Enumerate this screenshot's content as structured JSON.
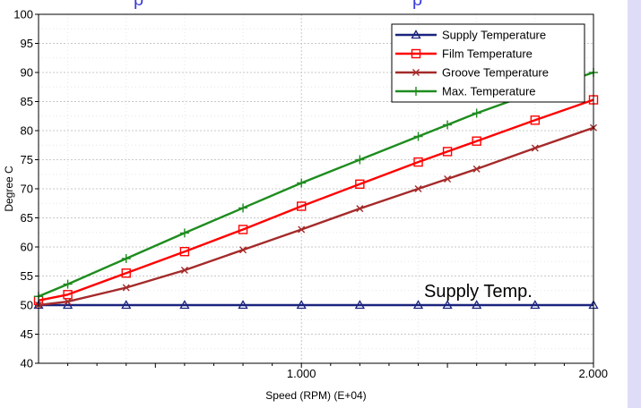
{
  "header": {
    "fragments": [
      "p",
      "p"
    ]
  },
  "chart_data": {
    "type": "line",
    "xlabel": "Speed (RPM) (E+04)",
    "ylabel": "Degree C",
    "xlim": [
      0.1,
      2.0
    ],
    "ylim": [
      40,
      100
    ],
    "x_ticks": [
      {
        "value": 1.0,
        "label": "1.000"
      },
      {
        "value": 2.0,
        "label": "2.000"
      }
    ],
    "y_ticks": [
      40,
      45,
      50,
      55,
      60,
      65,
      70,
      75,
      80,
      85,
      90,
      95,
      100
    ],
    "grid": true,
    "legend_position": "top-right",
    "annotations": [
      {
        "text": "Supply Temp.",
        "x": 1.42,
        "y": 52.5
      }
    ],
    "series": [
      {
        "name": "Supply Temperature",
        "color": "#1a237e",
        "marker": "triangle",
        "x": [
          0.1,
          0.2,
          0.4,
          0.6,
          0.8,
          1.0,
          1.2,
          1.4,
          1.5,
          1.6,
          1.8,
          2.0
        ],
        "y": [
          50,
          50,
          50,
          50,
          50,
          50,
          50,
          50,
          50,
          50,
          50,
          50
        ]
      },
      {
        "name": "Film Temperature",
        "color": "#ff0000",
        "marker": "square",
        "x": [
          0.1,
          0.2,
          0.4,
          0.6,
          0.8,
          1.0,
          1.2,
          1.4,
          1.5,
          1.6,
          1.8,
          2.0
        ],
        "y": [
          50.8,
          51.8,
          55.5,
          59.2,
          63.0,
          67.0,
          70.8,
          74.6,
          76.4,
          78.2,
          81.8,
          85.3
        ]
      },
      {
        "name": "Groove Temperature",
        "color": "#a52a2a",
        "marker": "x",
        "x": [
          0.1,
          0.2,
          0.4,
          0.6,
          0.8,
          1.0,
          1.2,
          1.4,
          1.5,
          1.6,
          1.8,
          2.0
        ],
        "y": [
          50.0,
          50.6,
          53.0,
          56.0,
          59.5,
          63.0,
          66.6,
          70.0,
          71.7,
          73.4,
          77.0,
          80.5
        ]
      },
      {
        "name": "Max. Temperature",
        "color": "#1e8c1e",
        "marker": "plus",
        "x": [
          0.1,
          0.2,
          0.4,
          0.6,
          0.8,
          1.0,
          1.2,
          1.4,
          1.5,
          1.6,
          1.8,
          2.0
        ],
        "y": [
          51.5,
          53.6,
          58.0,
          62.4,
          66.7,
          71.0,
          75.0,
          79.0,
          81.0,
          83.0,
          86.6,
          90.0
        ]
      }
    ]
  }
}
